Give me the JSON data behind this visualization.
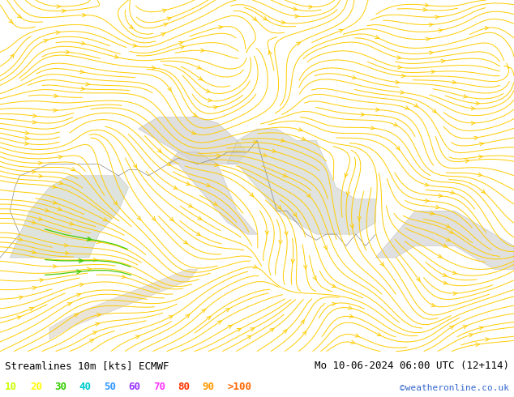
{
  "title_left": "Streamlines 10m [kts] ECMWF",
  "title_right": "Mo 10-06-2024 06:00 UTC (12+114)",
  "credit": "©weatheronline.co.uk",
  "legend_values": [
    "10",
    "20",
    "30",
    "40",
    "50",
    "60",
    "70",
    "80",
    "90",
    ">100"
  ],
  "legend_colors": [
    "#ccff00",
    "#ffff00",
    "#33cc00",
    "#00cccc",
    "#3399ff",
    "#9933ff",
    "#ff33ff",
    "#ff3300",
    "#ff9900",
    "#ff6600"
  ],
  "bg_sea_color": "#bbffbb",
  "bg_land_color": "#dddddd",
  "border_color": "#888888",
  "fig_bg": "#ffffff",
  "streamline_color_yellow": "#ffcc00",
  "streamline_color_green": "#44cc00",
  "title_fontsize": 9,
  "legend_fontsize": 9,
  "credit_color": "#3366cc",
  "title_color": "#000000",
  "map_xlim": [
    -10,
    42
  ],
  "map_ylim": [
    28,
    58
  ]
}
